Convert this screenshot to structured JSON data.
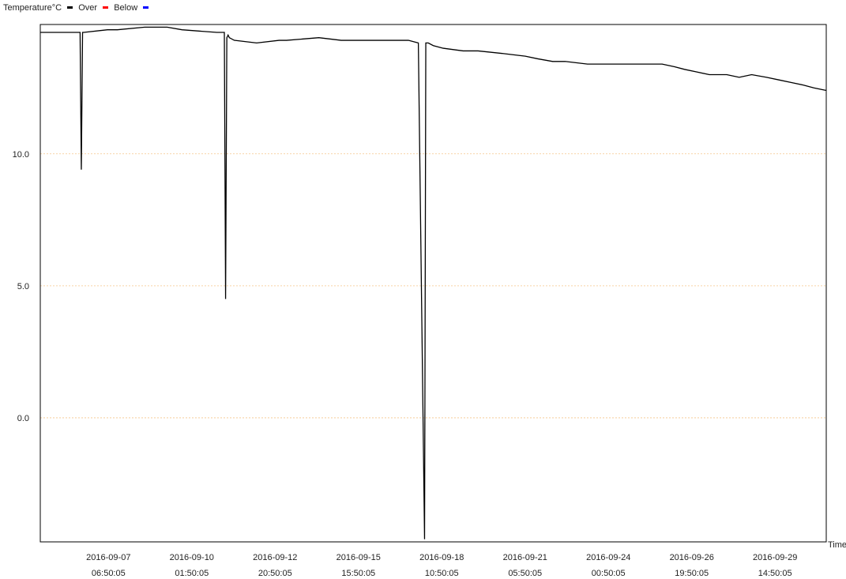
{
  "legend": {
    "title": "Temperature°C",
    "items": [
      {
        "label": "Over",
        "color": "#000000"
      },
      {
        "label": "Below",
        "color": "#ff0000"
      },
      {
        "label": "",
        "color": "#0000ff"
      }
    ],
    "below_label": "Below"
  },
  "chart_data": {
    "type": "line",
    "title": "",
    "xlabel": "Time",
    "ylabel": "",
    "x_is_time": true,
    "xlim": [
      "2016-09-05 00:00",
      "2016-10-01 08:00"
    ],
    "ylim": [
      -4.7,
      14.9
    ],
    "grid": {
      "y": [
        0,
        5,
        10
      ],
      "color": "#f5c58a"
    },
    "y_tick_labels": [
      "0.0",
      "5.0",
      "10.0"
    ],
    "x_tick_labels": [
      {
        "at": "2016-09-07 06:50",
        "date": "2016-09-07",
        "time": "06:50:05"
      },
      {
        "at": "2016-09-10 01:50",
        "date": "2016-09-10",
        "time": "01:50:05"
      },
      {
        "at": "2016-09-12 20:50",
        "date": "2016-09-12",
        "time": "20:50:05"
      },
      {
        "at": "2016-09-15 15:50",
        "date": "2016-09-15",
        "time": "15:50:05"
      },
      {
        "at": "2016-09-18 10:50",
        "date": "2016-09-18",
        "time": "10:50:05"
      },
      {
        "at": "2016-09-21 05:50",
        "date": "2016-09-21",
        "time": "05:50:05"
      },
      {
        "at": "2016-09-24 00:50",
        "date": "2016-09-24",
        "time": "00:50:05"
      },
      {
        "at": "2016-09-26 19:50",
        "date": "2016-09-26",
        "time": "19:50:05"
      },
      {
        "at": "2016-09-29 14:50",
        "date": "2016-09-29",
        "time": "14:50:05"
      }
    ],
    "series": [
      {
        "color": "#000000",
        "x": [
          "2016-09-05 00:00",
          "2016-09-06 08:00",
          "2016-09-06 09:00",
          "2016-09-06 10:00",
          "2016-09-06 11:00",
          "2016-09-07 06:00",
          "2016-09-07 14:00",
          "2016-09-08 12:00",
          "2016-09-09 06:00",
          "2016-09-09 18:00",
          "2016-09-10 22:00",
          "2016-09-11 04:00",
          "2016-09-11 05:00",
          "2016-09-11 06:00",
          "2016-09-11 07:00",
          "2016-09-11 08:00",
          "2016-09-11 12:00",
          "2016-09-12 06:00",
          "2016-09-13 00:00",
          "2016-09-13 06:00",
          "2016-09-14 08:00",
          "2016-09-15 02:00",
          "2016-09-17 08:00",
          "2016-09-17 16:00",
          "2016-09-17 21:00",
          "2016-09-17 22:00",
          "2016-09-17 23:00",
          "2016-09-18 00:00",
          "2016-09-18 04:00",
          "2016-09-18 12:00",
          "2016-09-19 04:00",
          "2016-09-19 16:00",
          "2016-09-20 12:00",
          "2016-09-21 06:00",
          "2016-09-21 16:00",
          "2016-09-22 04:00",
          "2016-09-22 14:00",
          "2016-09-23 08:00",
          "2016-09-23 20:00",
          "2016-09-25 20:00",
          "2016-09-26 06:00",
          "2016-09-26 14:00",
          "2016-09-27 00:00",
          "2016-09-27 10:00",
          "2016-09-28 00:00",
          "2016-09-28 10:00",
          "2016-09-28 20:00",
          "2016-09-29 08:00",
          "2016-09-29 18:00",
          "2016-09-30 04:00",
          "2016-09-30 14:00",
          "2016-09-30 22:00",
          "2016-10-01 08:00"
        ],
        "y": [
          14.6,
          14.6,
          9.4,
          14.6,
          14.6,
          14.7,
          14.7,
          14.8,
          14.8,
          14.7,
          14.6,
          14.6,
          4.5,
          14.4,
          14.5,
          14.4,
          14.3,
          14.2,
          14.3,
          14.3,
          14.4,
          14.3,
          14.3,
          14.2,
          -4.6,
          14.2,
          14.2,
          14.2,
          14.1,
          14.0,
          13.9,
          13.9,
          13.8,
          13.7,
          13.6,
          13.5,
          13.5,
          13.4,
          13.4,
          13.4,
          13.3,
          13.2,
          13.1,
          13.0,
          13.0,
          12.9,
          13.0,
          12.9,
          12.8,
          12.7,
          12.6,
          12.5,
          12.4
        ]
      }
    ]
  }
}
